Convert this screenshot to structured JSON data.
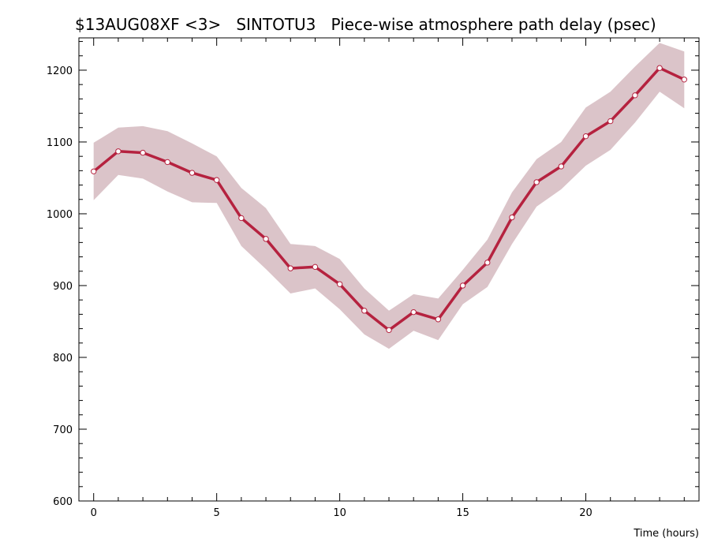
{
  "chart_data": {
    "type": "line",
    "title": "$13AUG08XF <3>   SINTOTU3   Piece-wise atmosphere path delay (psec)",
    "xlabel": "Time (hours)",
    "ylabel": "",
    "xlim": [
      -0.6,
      24.6
    ],
    "ylim": [
      600,
      1245
    ],
    "x_ticks": [
      0,
      5,
      10,
      15,
      20
    ],
    "y_ticks": [
      600,
      700,
      800,
      900,
      1000,
      1100,
      1200
    ],
    "grid": false,
    "series": [
      {
        "x": [
          0,
          1,
          2,
          3,
          4,
          5,
          6,
          7,
          8,
          9,
          10,
          11,
          12,
          13,
          14,
          15,
          16,
          17,
          18,
          19,
          20,
          21,
          22,
          23,
          24
        ],
        "values": [
          1059,
          1087,
          1085,
          1072,
          1057,
          1047,
          994,
          965,
          924,
          926,
          902,
          865,
          838,
          863,
          853,
          900,
          932,
          995,
          1044,
          1066,
          1108,
          1129,
          1165,
          1203,
          1187
        ],
        "upper": [
          1099,
          1120,
          1122,
          1115,
          1098,
          1080,
          1036,
          1008,
          958,
          955,
          937,
          896,
          865,
          888,
          882,
          922,
          964,
          1030,
          1076,
          1100,
          1148,
          1170,
          1205,
          1238,
          1226
        ],
        "lower": [
          1019,
          1054,
          1049,
          1031,
          1016,
          1015,
          955,
          923,
          889,
          896,
          867,
          832,
          812,
          837,
          824,
          874,
          898,
          958,
          1010,
          1034,
          1067,
          1089,
          1127,
          1170,
          1147
        ]
      }
    ],
    "colors": {
      "line": "#b5223f",
      "band": "#dbc4c9",
      "marker_fill": "#ffffff"
    }
  }
}
